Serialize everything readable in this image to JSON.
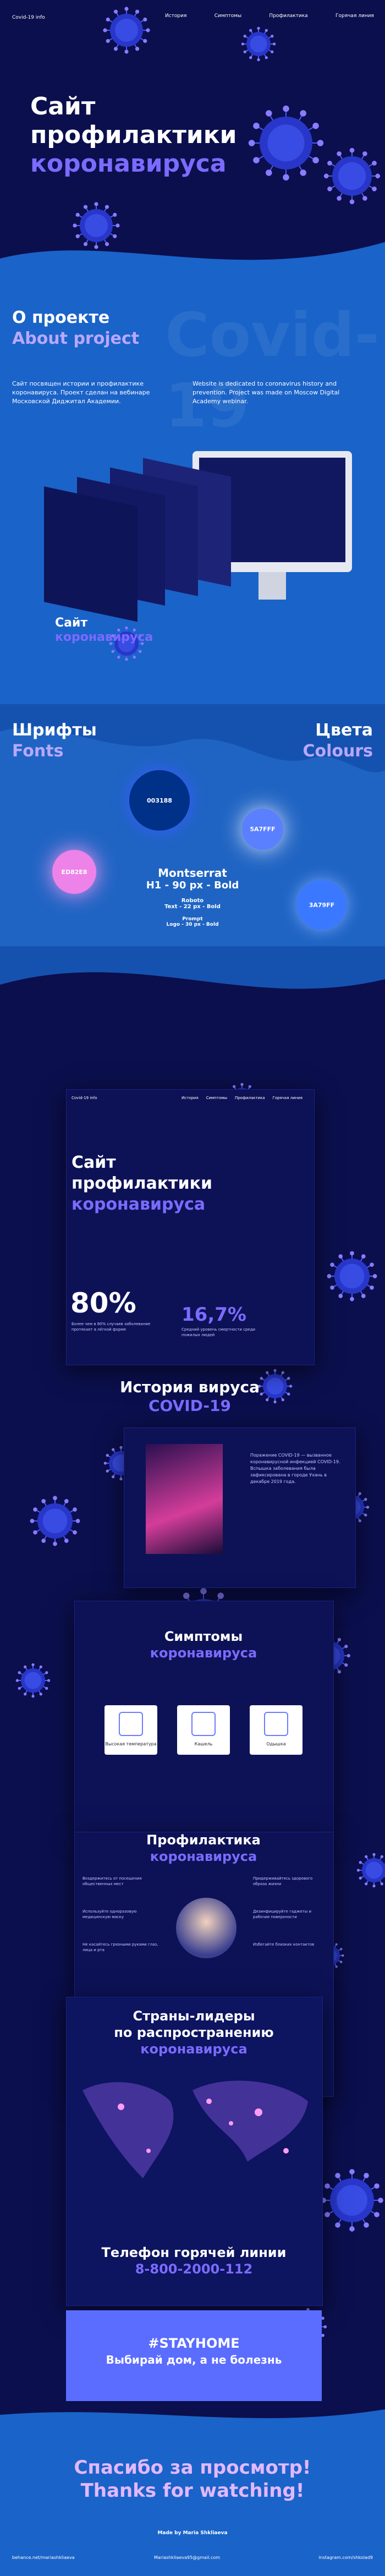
{
  "nav": {
    "logo": "Covid-19 info",
    "links": [
      "История",
      "Симптомы",
      "Профилактика",
      "Горячая линия"
    ]
  },
  "hero": {
    "title_line1": "Сайт",
    "title_line2": "профилактики",
    "title_accent": "коронавируса"
  },
  "about": {
    "title": "О проекте",
    "subtitle": "About project",
    "text_ru": "Сайт посвящен истории и профилактике коронавируса. Проект сделан на вебинаре Московской Диджитал Академии.",
    "text_en": "Website is dedicated to coronavirus history and prevention. Project was made on Moscow Digital Academy webinar.",
    "watermark": "Covid-19"
  },
  "style": {
    "fonts_title": "Шрифты",
    "fonts_subtitle": "Fonts",
    "colors_title": "Цвета",
    "colors_subtitle": "Colours",
    "colors": [
      "003188",
      "ED82E8",
      "5A7FFF",
      "3A79FF"
    ],
    "font_main": "Montserrat",
    "font_main_spec": "H1 - 90 px - Bold",
    "font_text": "Roboto",
    "font_text_spec": "Text - 22 px - Bold",
    "font_logo": "Prompt",
    "font_logo_spec": "Logo - 30 px - Bold"
  },
  "mockup": {
    "stat1": "80%",
    "stat1_text": "Более чем в 80% случаев заболевание протекает в лёгкой форме",
    "stat2": "16,7%",
    "stat2_text": "Средний уровень смертности среди пожилых людей",
    "history_title": "История вируса",
    "history_accent": "COVID-19",
    "history_text": "Поражение COVID-19 — вызванное коронавирусной инфекцией COVID-19. Вспышка заболевания была зафиксирована в городе Ухань в декабре 2019 года.",
    "symptoms_title": "Симптомы",
    "symptoms_accent": "коронавируса",
    "symptoms": [
      "Высокая температура",
      "Кашель",
      "Одышка"
    ],
    "prevention_title": "Профилактика",
    "prevention_accent": "коронавируса",
    "prevention": [
      "Воздержитесь от посещения общественных мест",
      "Используйте одноразовую медицинскую маску",
      "Не касайтесь грязными руками глаз, лица и рта",
      "Придерживайтесь здорового образа жизни",
      "Дезинфицируйте гаджеты и рабочие поверхности",
      "Избегайте близких контактов"
    ],
    "countries_title": "Страны-лидеры",
    "countries_title2": "по распространению",
    "countries_accent": "коронавируса",
    "hotline_title": "Телефон горячей линии",
    "hotline_phone": "8-800-2000-112",
    "stayhome": "#STAYHOME",
    "stayhome_sub": "Выбирай дом, а не болезнь"
  },
  "footer": {
    "thanks_ru": "Спасибо за просмотр!",
    "thanks_en": "Thanks for watching!",
    "author": "Made by Maria Shkliaeva",
    "behance": "behance.net/mariashkliaeva",
    "email": "Mariashkliaeva95@gmail.com",
    "instagram": "instagram.com/shkolad9"
  }
}
